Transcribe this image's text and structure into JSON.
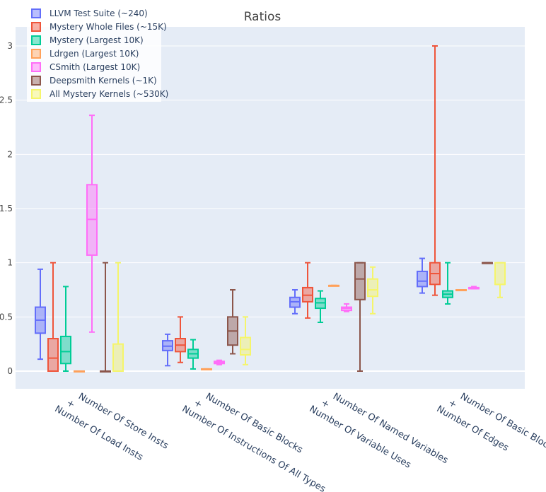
{
  "chart_data": {
    "type": "box",
    "title": "Ratios",
    "xlabel": "",
    "ylabel": "",
    "ylim": [
      -0.15,
      3.2
    ],
    "yticks": [
      0,
      0.5,
      1,
      1.5,
      2,
      2.5,
      3
    ],
    "ytick_labels": [
      "0",
      "0.5",
      "1",
      "1.5",
      "2",
      "2.5",
      "3"
    ],
    "grid": true,
    "legend_position": "top-left",
    "categories": [
      {
        "top": "Number Of Store Insts",
        "plus": "+",
        "bottom": "Number Of Load Insts"
      },
      {
        "top": "Number Of Basic Blocks",
        "plus": "+",
        "bottom": "Number Of Instructions Of All Types"
      },
      {
        "top": "Number Of Named Variables",
        "plus": "+",
        "bottom": "Number Of Variable Uses"
      },
      {
        "top": "Number Of Basic Blocks",
        "plus": "+",
        "bottom": "Number Of Edges"
      }
    ],
    "series": [
      {
        "name": "LLVM Test Suite (~240)",
        "color": "#636efa",
        "boxes": [
          {
            "min": 0.11,
            "q1": 0.35,
            "median": 0.47,
            "q3": 0.59,
            "max": 0.94
          },
          {
            "min": 0.05,
            "q1": 0.19,
            "median": 0.23,
            "q3": 0.28,
            "max": 0.34
          },
          {
            "min": 0.53,
            "q1": 0.59,
            "median": 0.64,
            "q3": 0.68,
            "max": 0.75
          },
          {
            "min": 0.72,
            "q1": 0.78,
            "median": 0.83,
            "q3": 0.92,
            "max": 1.04
          }
        ]
      },
      {
        "name": "Mystery Whole Files (~15K)",
        "color": "#ef553b",
        "boxes": [
          {
            "min": 0.0,
            "q1": 0.0,
            "median": 0.12,
            "q3": 0.3,
            "max": 1.0
          },
          {
            "min": 0.08,
            "q1": 0.18,
            "median": 0.24,
            "q3": 0.3,
            "max": 0.5
          },
          {
            "min": 0.49,
            "q1": 0.64,
            "median": 0.7,
            "q3": 0.77,
            "max": 1.0
          },
          {
            "min": 0.7,
            "q1": 0.8,
            "median": 0.9,
            "q3": 1.0,
            "max": 3.0
          }
        ]
      },
      {
        "name": "Mystery (Largest 10K)",
        "color": "#00cc96",
        "boxes": [
          {
            "min": 0.0,
            "q1": 0.07,
            "median": 0.18,
            "q3": 0.32,
            "max": 0.78
          },
          {
            "min": 0.02,
            "q1": 0.12,
            "median": 0.16,
            "q3": 0.2,
            "max": 0.29
          },
          {
            "min": 0.45,
            "q1": 0.58,
            "median": 0.63,
            "q3": 0.67,
            "max": 0.74
          },
          {
            "min": 0.62,
            "q1": 0.68,
            "median": 0.71,
            "q3": 0.74,
            "max": 1.0
          }
        ]
      },
      {
        "name": "Ldrgen (Largest 10K)",
        "color": "#ffa15a",
        "boxes": [
          {
            "min": 0.0,
            "q1": 0.0,
            "median": 0.0,
            "q3": 0.0,
            "max": 0.0
          },
          {
            "min": 0.02,
            "q1": 0.02,
            "median": 0.02,
            "q3": 0.02,
            "max": 0.02
          },
          {
            "min": 0.79,
            "q1": 0.79,
            "median": 0.79,
            "q3": 0.79,
            "max": 0.79
          },
          {
            "min": 0.75,
            "q1": 0.75,
            "median": 0.75,
            "q3": 0.75,
            "max": 0.75
          }
        ]
      },
      {
        "name": "CSmith (Largest 10K)",
        "color": "#ff6ef8",
        "boxes": [
          {
            "min": 0.36,
            "q1": 1.07,
            "median": 1.4,
            "q3": 1.72,
            "max": 2.36
          },
          {
            "min": 0.06,
            "q1": 0.07,
            "median": 0.08,
            "q3": 0.09,
            "max": 0.1
          },
          {
            "min": 0.55,
            "q1": 0.56,
            "median": 0.58,
            "q3": 0.59,
            "max": 0.62
          },
          {
            "min": 0.76,
            "q1": 0.76,
            "median": 0.77,
            "q3": 0.77,
            "max": 0.78
          }
        ]
      },
      {
        "name": "Deepsmith Kernels (~1K)",
        "color": "#8c564b",
        "boxes": [
          {
            "min": 0.0,
            "q1": 0.0,
            "median": 0.0,
            "q3": 0.0,
            "max": 1.0
          },
          {
            "min": 0.16,
            "q1": 0.24,
            "median": 0.37,
            "q3": 0.5,
            "max": 0.75
          },
          {
            "min": 0.0,
            "q1": 0.66,
            "median": 0.85,
            "q3": 1.0,
            "max": 1.0
          },
          {
            "min": 1.0,
            "q1": 1.0,
            "median": 1.0,
            "q3": 1.0,
            "max": 1.0
          }
        ]
      },
      {
        "name": "All Mystery Kernels (~530K)",
        "color": "#f5f56b",
        "boxes": [
          {
            "min": 0.0,
            "q1": 0.0,
            "median": 0.0,
            "q3": 0.25,
            "max": 1.0
          },
          {
            "min": 0.06,
            "q1": 0.15,
            "median": 0.2,
            "q3": 0.31,
            "max": 0.5
          },
          {
            "min": 0.53,
            "q1": 0.69,
            "median": 0.75,
            "q3": 0.85,
            "max": 0.96
          },
          {
            "min": 0.68,
            "q1": 0.8,
            "median": 0.8,
            "q3": 1.0,
            "max": 1.0
          }
        ]
      }
    ]
  }
}
